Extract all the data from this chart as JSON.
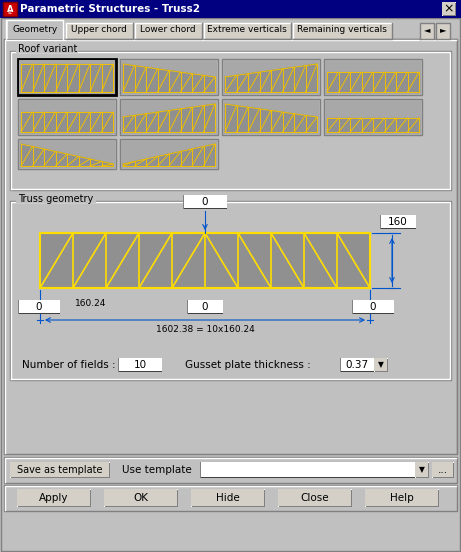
{
  "title": "Parametric Structures - Truss2",
  "bg_color": "#c0c0c0",
  "title_bar_color": "#000080",
  "title_text_color": "#ffffff",
  "tabs": [
    "Geometry",
    "Upper chord",
    "Lower chord",
    "Extreme verticals",
    "Remaining verticals"
  ],
  "roof_variant_label": "Roof variant",
  "truss_geometry_label": "Truss geometry",
  "number_of_fields_label": "Number of fields :",
  "number_of_fields_value": "10",
  "gusset_label": "Gusset plate thickness :",
  "gusset_value": "0.37",
  "dim_top": "160",
  "dim_span_label": "160.24",
  "dim_total_label": "1602.38 = 10x160.24",
  "buttons_bottom": [
    "Apply",
    "OK",
    "Hide",
    "Close",
    "Help"
  ],
  "button_save_template": "Save as template",
  "button_use_template": "Use template",
  "truss_border": "#ffdd00",
  "line_color": "#0055cc",
  "text_color": "#000000",
  "white": "#ffffff"
}
